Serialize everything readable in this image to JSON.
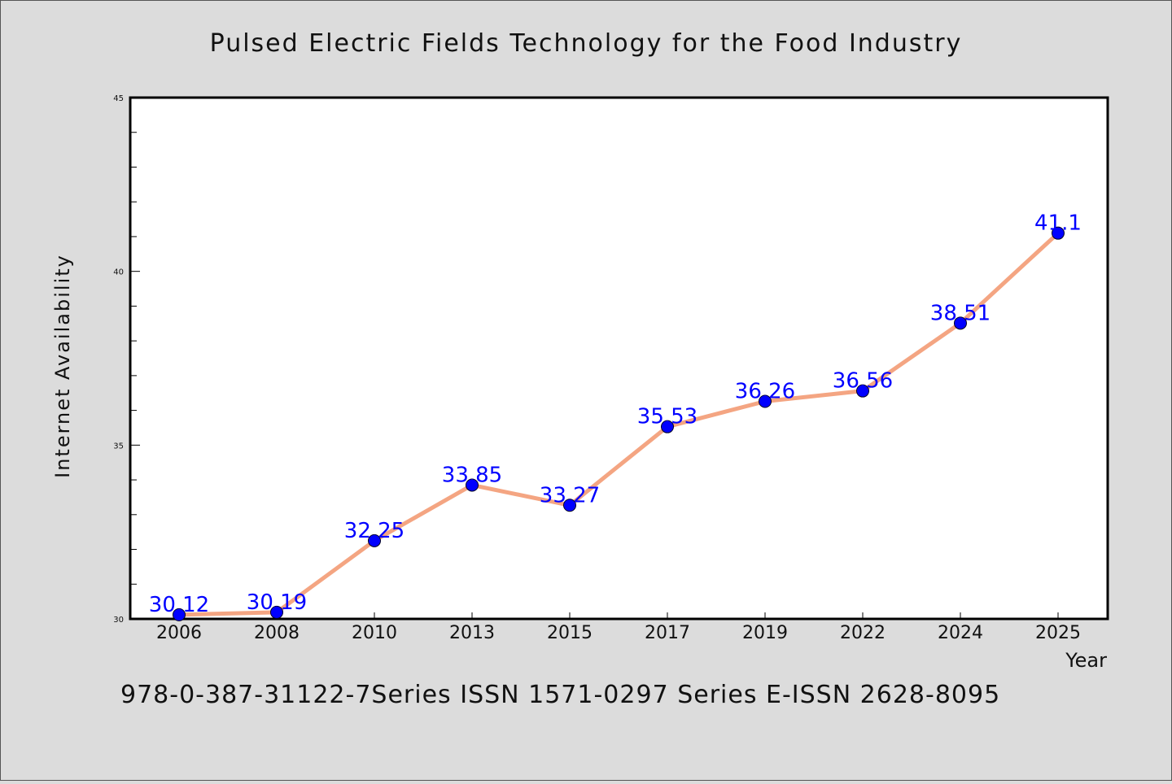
{
  "chart_data": {
    "type": "line",
    "title": "Pulsed Electric Fields Technology for the Food Industry",
    "footer": "978-0-387-31122-7Series ISSN 1571-0297 Series E-ISSN 2628-8095",
    "xlabel": "Year",
    "ylabel": "Internet Availability",
    "categories": [
      "2006",
      "2008",
      "2010",
      "2013",
      "2015",
      "2017",
      "2019",
      "2022",
      "2024",
      "2025"
    ],
    "values": [
      30.12,
      30.19,
      32.25,
      33.85,
      33.27,
      35.53,
      36.26,
      36.56,
      38.51,
      41.1
    ],
    "data_labels": [
      "30.12",
      "30.19",
      "32.25",
      "33.85",
      "33.27",
      "35.53",
      "36.26",
      "36.56",
      "38.51",
      "41.1"
    ],
    "ylim": [
      30,
      45
    ],
    "yticks": [
      30,
      35,
      40,
      45
    ],
    "ytick_labels": [
      "30",
      "35",
      "40",
      "45"
    ],
    "grid": false,
    "colors": {
      "background": "#dcdcdc",
      "plot_background": "#ffffff",
      "line": "#f4a582",
      "marker": "#0000ff",
      "data_label": "#0000ff"
    }
  }
}
